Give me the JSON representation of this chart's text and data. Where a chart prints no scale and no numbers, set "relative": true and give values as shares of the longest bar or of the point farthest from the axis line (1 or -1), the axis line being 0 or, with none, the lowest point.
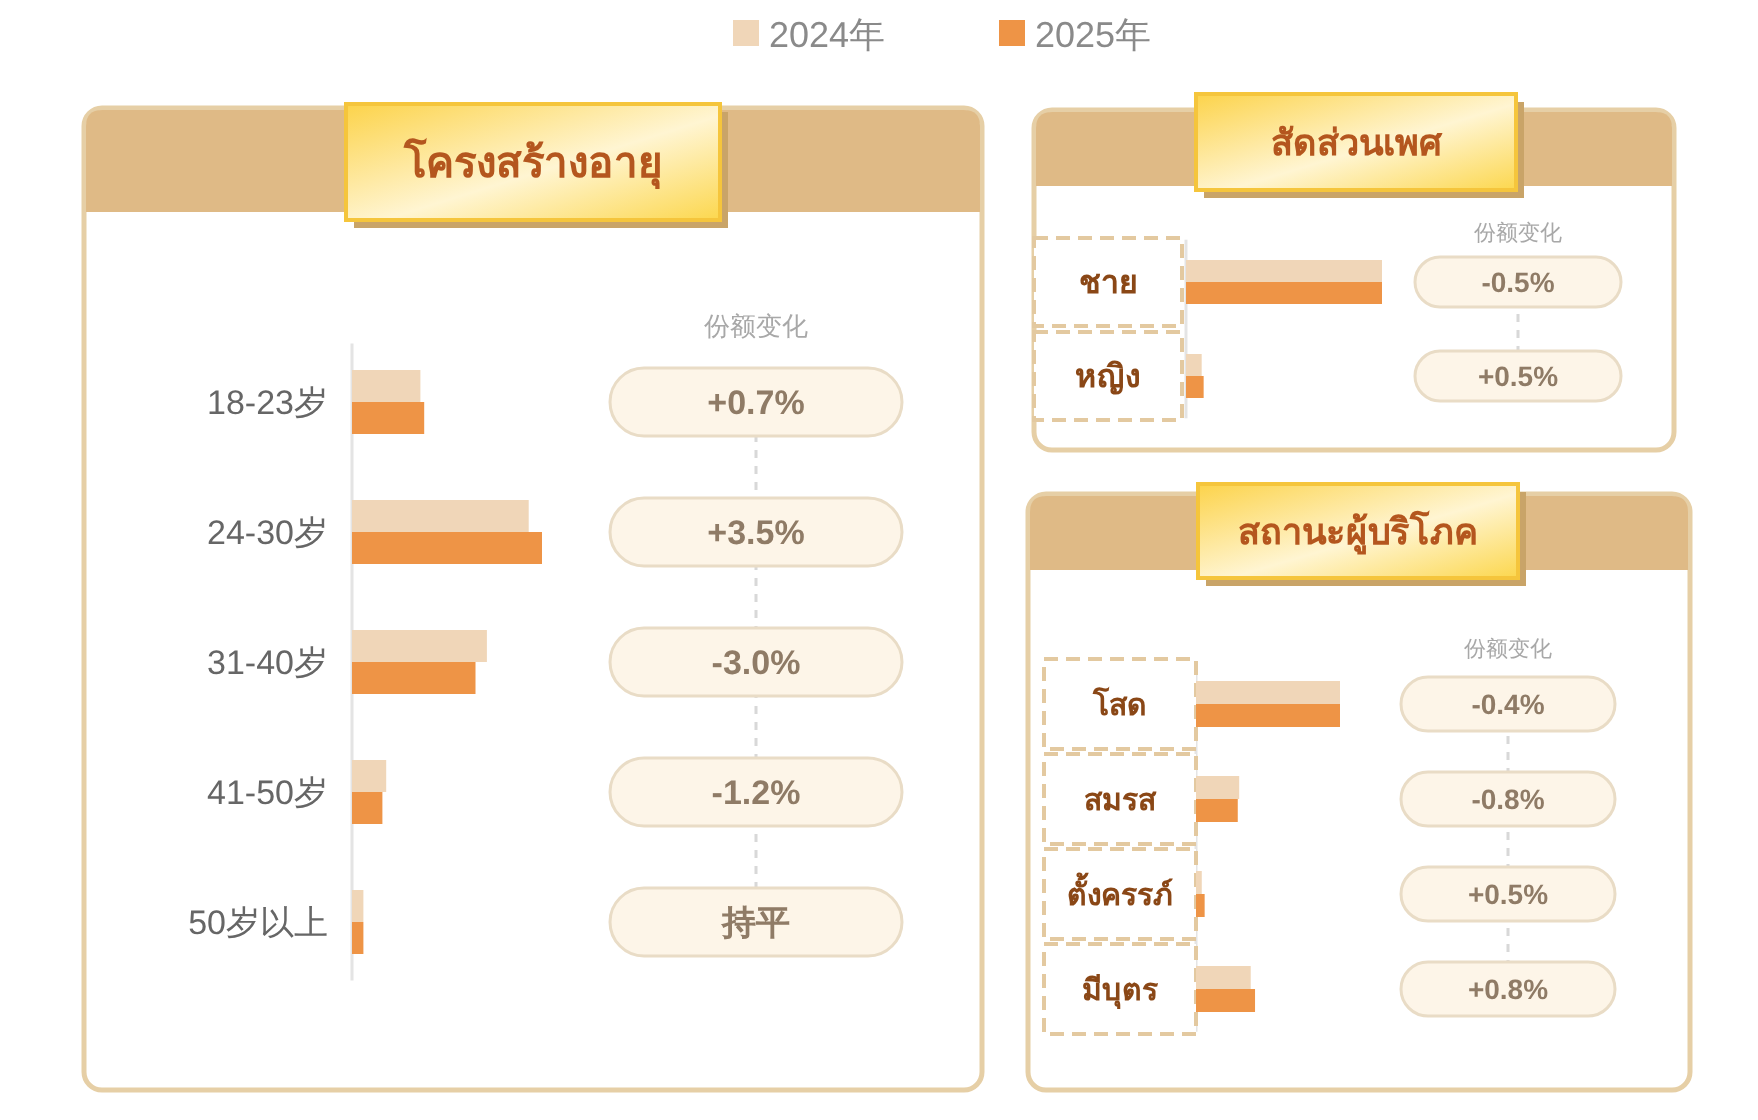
{
  "chart_data": [
    {
      "type": "bar",
      "orientation": "horizontal",
      "relative": true,
      "title": "โครงสร้างอายุ",
      "legend": "top",
      "categories": [
        "18-23岁",
        "24-30岁",
        "31-40岁",
        "41-50岁",
        "50岁以上"
      ],
      "series": [
        {
          "name": "2024年",
          "color": "#f0d6b8",
          "values": [
            0.36,
            0.93,
            0.71,
            0.18,
            0.06
          ]
        },
        {
          "name": "2025年",
          "color": "#ee9446",
          "values": [
            0.38,
            1,
            0.65,
            0.16,
            0.06
          ]
        }
      ],
      "annotations": [
        "份额变化",
        "+0.7%",
        "+3.5%",
        "-3.0%",
        "-1.2%",
        "持平"
      ]
    },
    {
      "type": "bar",
      "orientation": "horizontal",
      "relative": true,
      "title": "สัดส่วนเพศ",
      "categories": [
        "ชาย",
        "หญิง"
      ],
      "series": [
        {
          "color": "#f0d6b8",
          "values": [
            1,
            0.08
          ]
        },
        {
          "color": "#ee9446",
          "values": [
            1,
            0.09
          ]
        }
      ],
      "annotations": [
        "份额变化",
        "-0.5%",
        "+0.5%"
      ]
    },
    {
      "type": "bar",
      "orientation": "horizontal",
      "relative": true,
      "title": "สถานะผู้บริโภค",
      "categories": [
        "โสด",
        "สมรส",
        "ตั้งครรภ์",
        "มีบุตร"
      ],
      "series": [
        {
          "color": "#f0d6b8",
          "values": [
            1,
            0.3,
            0.04,
            0.38
          ]
        },
        {
          "color": "#ee9446",
          "values": [
            1,
            0.29,
            0.06,
            0.41
          ]
        }
      ],
      "annotations": [
        "份额变化",
        "-0.4%",
        "-0.8%",
        "+0.5%",
        "+0.8%"
      ]
    }
  ]
}
